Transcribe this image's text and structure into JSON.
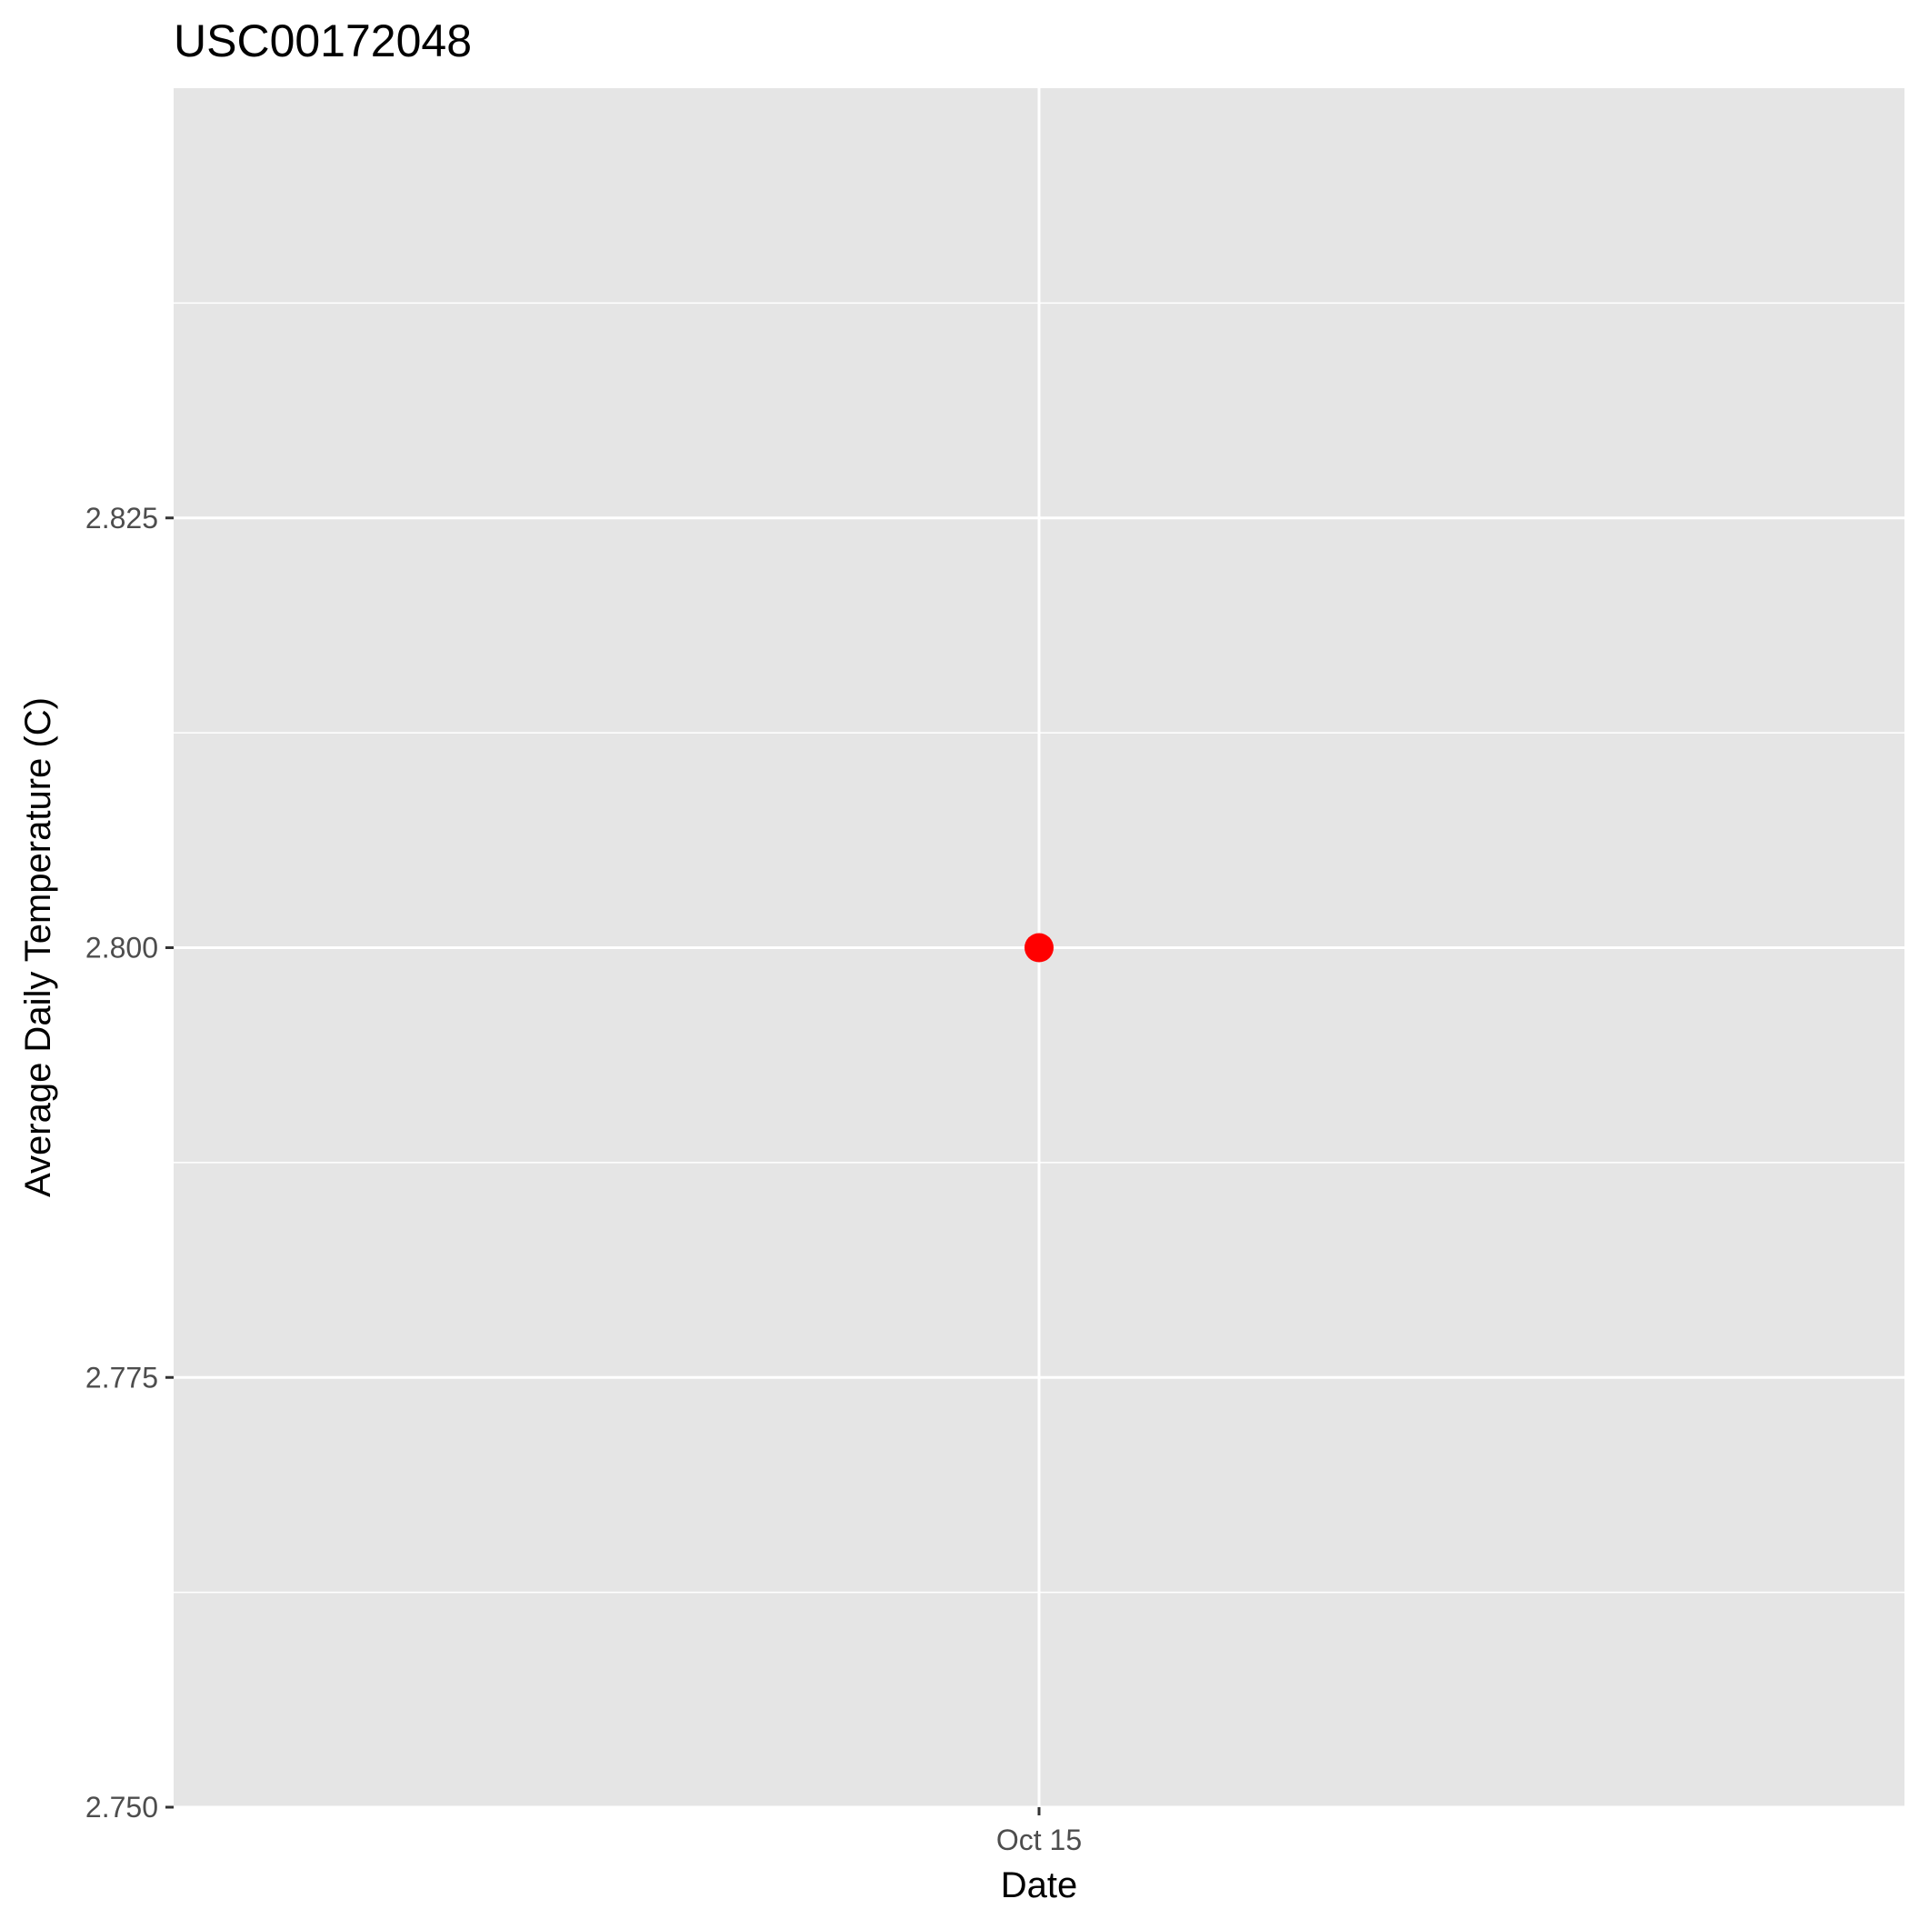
{
  "chart_data": {
    "type": "scatter",
    "title": "USC00172048",
    "xlabel": "Date",
    "ylabel": "Average Daily Temperature (C)",
    "x_ticks": [
      "Oct 15"
    ],
    "y_ticks": [
      "2.750",
      "2.775",
      "2.800",
      "2.825"
    ],
    "ylim": [
      2.75,
      2.85
    ],
    "grid": true,
    "legend": "none",
    "series": [
      {
        "points": [
          {
            "x": "Oct 15",
            "y": 2.8
          }
        ]
      }
    ],
    "colors": {
      "point": "#ff0000",
      "panel_background": "#e5e5e5",
      "grid": "#ffffff",
      "tick_label": "#4d4d4d",
      "axis_tick": "#333333"
    }
  }
}
